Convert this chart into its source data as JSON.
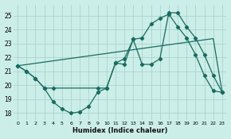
{
  "xlabel": "Humidex (Indice chaleur)",
  "bg_color": "#cceee8",
  "grid_color": "#aad4cc",
  "line_color": "#1a6b60",
  "xlim": [
    -0.5,
    23.5
  ],
  "ylim": [
    17.5,
    25.8
  ],
  "yticks": [
    18,
    19,
    20,
    21,
    22,
    23,
    24,
    25
  ],
  "xticks": [
    0,
    1,
    2,
    3,
    4,
    5,
    6,
    7,
    8,
    9,
    10,
    11,
    12,
    13,
    14,
    15,
    16,
    17,
    18,
    19,
    20,
    21,
    22,
    23
  ],
  "series1_x": [
    0,
    1,
    2,
    3,
    4,
    5,
    6,
    7,
    8,
    9,
    10,
    11,
    12,
    13,
    14,
    15,
    16,
    17,
    18,
    19,
    20,
    21,
    22,
    23
  ],
  "series1_y": [
    21.4,
    21.0,
    20.5,
    19.8,
    18.8,
    18.3,
    18.0,
    18.1,
    18.5,
    19.5,
    19.8,
    21.6,
    21.9,
    23.3,
    23.4,
    24.4,
    24.8,
    25.1,
    24.2,
    23.4,
    22.2,
    20.7,
    19.6,
    19.5
  ],
  "series2_x": [
    0,
    1,
    2,
    3,
    4,
    9,
    10,
    11,
    12,
    13,
    14,
    15,
    16,
    17,
    18,
    19,
    20,
    21,
    22,
    23
  ],
  "series2_y": [
    21.4,
    21.0,
    20.5,
    19.8,
    19.8,
    19.8,
    19.8,
    21.6,
    21.5,
    23.3,
    21.5,
    21.5,
    21.9,
    25.2,
    25.2,
    24.2,
    23.4,
    22.2,
    20.7,
    19.5
  ],
  "series3_x": [
    0,
    22,
    23
  ],
  "series3_y": [
    21.4,
    23.35,
    19.5
  ]
}
